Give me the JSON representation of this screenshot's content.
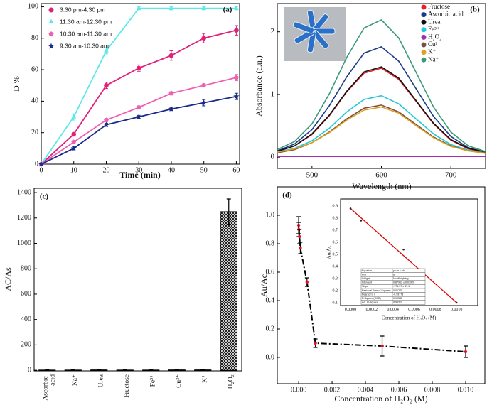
{
  "chart_data": [
    {
      "type": "line",
      "panel_label": "(a)",
      "xlabel": "Time (min)",
      "ylabel": "D %",
      "x": [
        0,
        10,
        20,
        30,
        40,
        50,
        60
      ],
      "xlim": [
        0,
        61
      ],
      "xticks": [
        0,
        10,
        20,
        30,
        40,
        50,
        60
      ],
      "ylim": [
        0,
        102
      ],
      "yticks": [
        0,
        20,
        40,
        60,
        80,
        100
      ],
      "legend": "upper left",
      "series": [
        {
          "name": "3.30 pm-4.30 pm",
          "color": "#e0207a",
          "marker": "circle",
          "values": [
            0,
            19,
            50,
            61,
            69,
            80,
            85
          ],
          "errors": [
            0,
            1,
            2,
            2,
            3,
            3,
            3
          ]
        },
        {
          "name": "11.30 am-12.30 pm",
          "color": "#5ee8e8",
          "marker": "triangle",
          "values": [
            0,
            30,
            72,
            99,
            99,
            99,
            99
          ],
          "errors": [
            0,
            2,
            2,
            1,
            1,
            1,
            1
          ]
        },
        {
          "name": "10.30 am-11.30 am",
          "color": "#f060b0",
          "marker": "pentagon",
          "values": [
            0,
            14,
            28,
            36,
            45,
            50,
            55
          ],
          "errors": [
            0,
            1,
            1,
            1,
            1,
            1,
            2
          ]
        },
        {
          "name": "9.30 am-10.30 am",
          "color": "#1a2a8a",
          "marker": "star",
          "values": [
            0,
            10,
            25,
            30,
            35,
            39,
            43
          ],
          "errors": [
            0,
            1,
            1,
            1,
            1,
            2,
            2
          ]
        }
      ]
    },
    {
      "type": "line",
      "panel_label": "(b)",
      "xlabel": "Wavelength (nm)",
      "ylabel": "Absorbance (a.u.)",
      "x": [
        450,
        475,
        500,
        525,
        550,
        575,
        600,
        625,
        650,
        675,
        700,
        725,
        750
      ],
      "xlim": [
        450,
        750
      ],
      "xticks": [
        500,
        600,
        700
      ],
      "ylim": [
        -0.18,
        2.45
      ],
      "yticks": [
        0,
        1,
        2
      ],
      "legend": "upper right",
      "series": [
        {
          "name": "Fructose",
          "color": "#e8202a",
          "values": [
            0.09,
            0.18,
            0.36,
            0.66,
            1.04,
            1.34,
            1.42,
            1.24,
            0.89,
            0.53,
            0.27,
            0.13,
            0.08
          ]
        },
        {
          "name": "Ascorbic acid",
          "color": "#1a3a8a",
          "values": [
            0.1,
            0.21,
            0.44,
            0.82,
            1.28,
            1.66,
            1.76,
            1.53,
            1.09,
            0.65,
            0.33,
            0.15,
            0.08
          ]
        },
        {
          "name": "Urea",
          "color": "#111111",
          "values": [
            0.09,
            0.18,
            0.37,
            0.67,
            1.05,
            1.36,
            1.44,
            1.26,
            0.9,
            0.54,
            0.28,
            0.14,
            0.08
          ]
        },
        {
          "name": "Fe³⁺",
          "color": "#20c8d8",
          "values": [
            0.08,
            0.14,
            0.26,
            0.46,
            0.72,
            0.92,
            0.98,
            0.85,
            0.61,
            0.37,
            0.2,
            0.11,
            0.07
          ]
        },
        {
          "name": "H₂O₂",
          "color": "#a030b0",
          "values": [
            0.01,
            0.01,
            0.01,
            0.01,
            0.01,
            0.01,
            0.01,
            0.01,
            0.01,
            0.01,
            0.01,
            0.01,
            0.01
          ]
        },
        {
          "name": "Cu²⁺",
          "color": "#7a5040",
          "values": [
            0.07,
            0.12,
            0.23,
            0.4,
            0.61,
            0.78,
            0.83,
            0.72,
            0.52,
            0.32,
            0.18,
            0.1,
            0.07
          ]
        },
        {
          "name": "K⁺",
          "color": "#e0a020",
          "values": [
            0.08,
            0.13,
            0.23,
            0.39,
            0.59,
            0.75,
            0.8,
            0.7,
            0.5,
            0.31,
            0.17,
            0.1,
            0.06
          ]
        },
        {
          "name": "Na⁺",
          "color": "#3a9a7a",
          "values": [
            0.12,
            0.25,
            0.53,
            1.01,
            1.59,
            2.06,
            2.19,
            1.9,
            1.35,
            0.8,
            0.4,
            0.18,
            0.09
          ]
        }
      ]
    },
    {
      "type": "bar",
      "panel_label": "(c)",
      "ylabel": "AC/As",
      "categories": [
        "Ascorbic acid",
        "Na⁺",
        "Urea",
        "Fructose",
        "Fe³⁺",
        "Cu²⁺",
        "K⁺",
        "H₂O₂"
      ],
      "values": [
        2,
        2,
        3,
        2,
        2,
        3,
        3,
        1250
      ],
      "errors": [
        1,
        1,
        2,
        1,
        1,
        2,
        1,
        100
      ],
      "color": "#000000",
      "ylim": [
        -5,
        1434
      ],
      "yticks": [
        0,
        200,
        400,
        600,
        800,
        1000,
        1200,
        1400
      ]
    },
    {
      "type": "scatter",
      "panel_label": "(d)",
      "xlabel": "Concentration of H₂O₂ (M)",
      "ylabel": "Au/Ac",
      "x": [
        0,
        1e-05,
        5e-05,
        0.0001,
        0.0005,
        0.001,
        0.005,
        0.01
      ],
      "values": [
        0.93,
        0.9,
        0.85,
        0.77,
        0.53,
        0.1,
        0.08,
        0.04
      ],
      "errors": [
        0.06,
        0.05,
        0.05,
        0.04,
        0.03,
        0.03,
        0.07,
        0.04
      ],
      "color": "#e0102a",
      "line_color": "#000000",
      "line_style": "dash-dot",
      "xlim": [
        -0.00128,
        0.01115
      ],
      "xticks": [
        {
          "value": 0,
          "label": "0.000"
        },
        0.002,
        0.004,
        0.006,
        0.008,
        {
          "value": 0.01,
          "label": "0.010"
        }
      ],
      "ylim": [
        -0.185,
        1.2
      ],
      "yticks": [
        {
          "value": 0,
          "label": "0.0"
        },
        0.2,
        0.4,
        0.6,
        0.8,
        {
          "value": 1,
          "label": "1.0"
        }
      ]
    },
    {
      "type": "scatter",
      "inset": true,
      "xlabel": "Concentration of H₂O₂ (M)",
      "ylabel": "Au/Ac",
      "x": [
        0,
        0.0001,
        0.0005,
        0.001
      ],
      "values": [
        0.88,
        0.78,
        0.54,
        0.1
      ],
      "color": "#222222",
      "fit_x": [
        0,
        0.001
      ],
      "fit_values": [
        0.88,
        0.1
      ],
      "fit_color": "#e00000",
      "xlim": [
        -9.4e-05,
        0.0012
      ],
      "xticks": [
        {
          "value": 0,
          "label": "0.0000"
        },
        0.0002,
        0.0004,
        0.0006,
        0.0008,
        {
          "value": 0.001,
          "label": "0.0010"
        }
      ],
      "ylim": [
        0.076,
        0.959
      ],
      "yticks": [
        0.1,
        0.2,
        0.3,
        0.4,
        0.5,
        0.6,
        0.7,
        0.8,
        0.9
      ],
      "table": [
        [
          "Equation",
          "y = a + b*x"
        ],
        [
          "Plot",
          "B"
        ],
        [
          "Weight",
          "No Weighting"
        ],
        [
          "Intercept",
          "0.87962 ± 0.01920"
        ],
        [
          "Slope",
          "-776.37 ± 37.1"
        ],
        [
          "Residual Sum of Squares",
          "0.00275"
        ],
        [
          "Pearson's r",
          "-0.99773"
        ],
        [
          "R-Square (COD)",
          "0.99546"
        ],
        [
          "Adj. R-Square",
          "0.99319"
        ]
      ]
    }
  ]
}
